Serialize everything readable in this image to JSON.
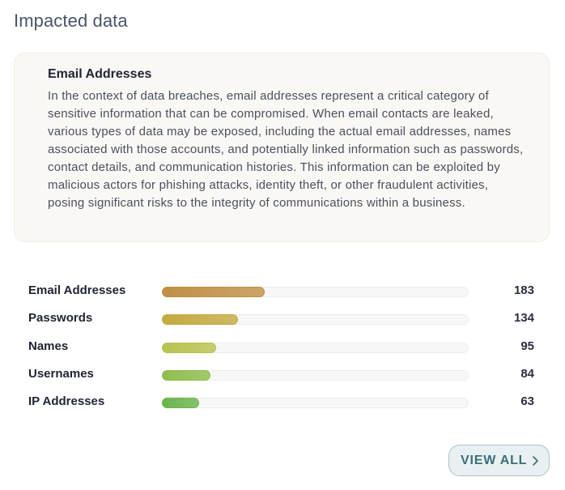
{
  "header": {
    "title": "Impacted data"
  },
  "description": {
    "title": "Email Addresses",
    "text": "In the context of data breaches, email addresses represent a critical category of sensitive information that can be compromised. When email contacts are leaked, various types of data may be exposed, including the actual email addresses, names associated with those accounts, and potentially linked information such as passwords, contact details, and communication histories. This information can be exploited by malicious actors for phishing attacks, identity theft, or other fraudulent activities, posing significant risks to the integrity of communications within a business."
  },
  "chart_data": {
    "type": "bar",
    "categories": [
      "Email Addresses",
      "Passwords",
      "Names",
      "Usernames",
      "IP Addresses"
    ],
    "values": [
      183,
      134,
      95,
      84,
      63
    ],
    "value_labels": [
      "183",
      "134",
      "95",
      "84",
      "63"
    ],
    "max": 560,
    "colors": [
      "#c08f45",
      "#c4aa40",
      "#b8c24e",
      "#8fbd4c",
      "#6ab54a"
    ]
  },
  "actions": {
    "view_all_label": "VIEW ALL",
    "chevron_icon": "chevron-right-icon"
  }
}
